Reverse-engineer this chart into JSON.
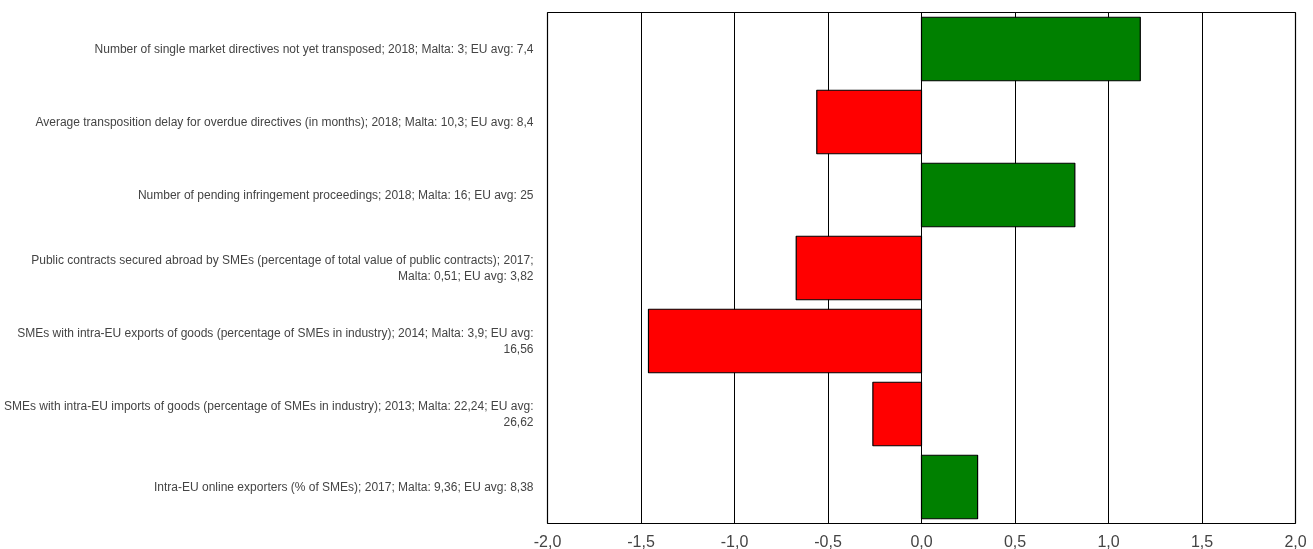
{
  "chart_data": {
    "type": "bar",
    "orientation": "horizontal",
    "categories": [
      "Number of single market directives not yet transposed; 2018; Malta: 3; EU avg: 7,4",
      "Average transposition delay for overdue directives (in months); 2018; Malta: 10,3; EU avg: 8,4",
      "Number of pending infringement proceedings; 2018; Malta: 16; EU avg: 25",
      "Public contracts secured abroad by SMEs (percentage of total value of public contracts); 2017; Malta: 0,51; EU avg: 3,82",
      "SMEs with intra-EU exports of goods (percentage of SMEs in industry); 2014; Malta: 3,9; EU avg: 16,56",
      "SMEs with intra-EU imports of goods (percentage of SMEs in industry); 2013; Malta: 22,24; EU avg: 26,62",
      "Intra-EU online exporters (% of SMEs); 2017; Malta: 9,36; EU avg: 8,38"
    ],
    "values": [
      1.17,
      -0.56,
      0.82,
      -0.67,
      -1.46,
      -0.26,
      0.3
    ],
    "colors": [
      "#008000",
      "#ff0000",
      "#008000",
      "#ff0000",
      "#ff0000",
      "#ff0000",
      "#008000"
    ],
    "xlim": [
      -2,
      2
    ],
    "xticks": [
      {
        "value": -2,
        "label": "-2,0"
      },
      {
        "value": -1.5,
        "label": "-1,5"
      },
      {
        "value": -1,
        "label": "-1,0"
      },
      {
        "value": -0.5,
        "label": "-0,5"
      },
      {
        "value": 0,
        "label": "0,0"
      },
      {
        "value": 0.5,
        "label": "0,5"
      },
      {
        "value": 1,
        "label": "1,0"
      },
      {
        "value": 1.5,
        "label": "1,5"
      },
      {
        "value": 2,
        "label": "2,0"
      }
    ],
    "grid": "x"
  }
}
